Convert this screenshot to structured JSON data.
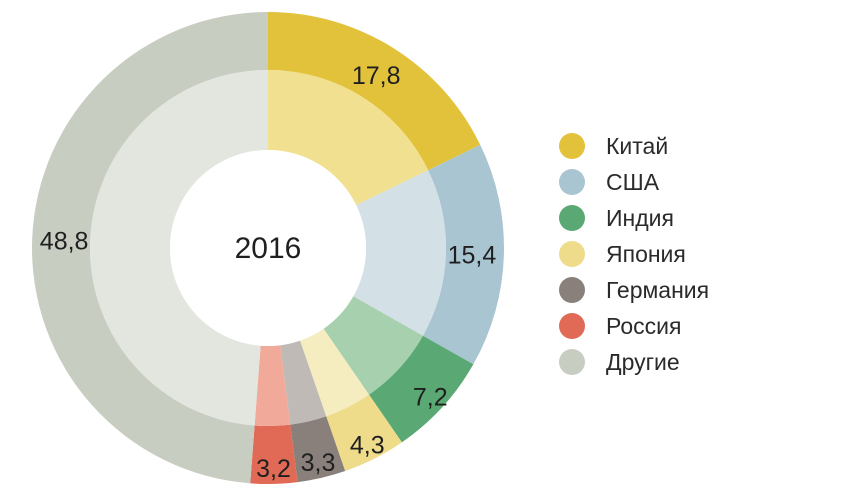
{
  "chart_data": {
    "type": "pie",
    "center_label": "2016",
    "categories": [
      "Китай",
      "США",
      "Индия",
      "Япония",
      "Германия",
      "Россия",
      "Другие"
    ],
    "values": [
      17.8,
      15.4,
      7.2,
      4.3,
      3.3,
      3.2,
      48.8
    ],
    "value_labels": [
      "17,8",
      "15,4",
      "7,2",
      "4,3",
      "3,3",
      "3,2",
      "48,8"
    ],
    "colors": {
      "outer": [
        "#e2c23b",
        "#a9c5d2",
        "#5aa873",
        "#efdc8b",
        "#8a807b",
        "#e06a55",
        "#c8cdc2"
      ],
      "inner": [
        "#f0e08f",
        "#d3e0e6",
        "#a6d0ae",
        "#f5ecc0",
        "#c0bab7",
        "#f1aa9a",
        "#e3e5df"
      ]
    },
    "legend": {
      "placement": "right",
      "items": [
        "Китай",
        "США",
        "Индия",
        "Япония",
        "Германия",
        "Россия",
        "Другие"
      ]
    }
  }
}
